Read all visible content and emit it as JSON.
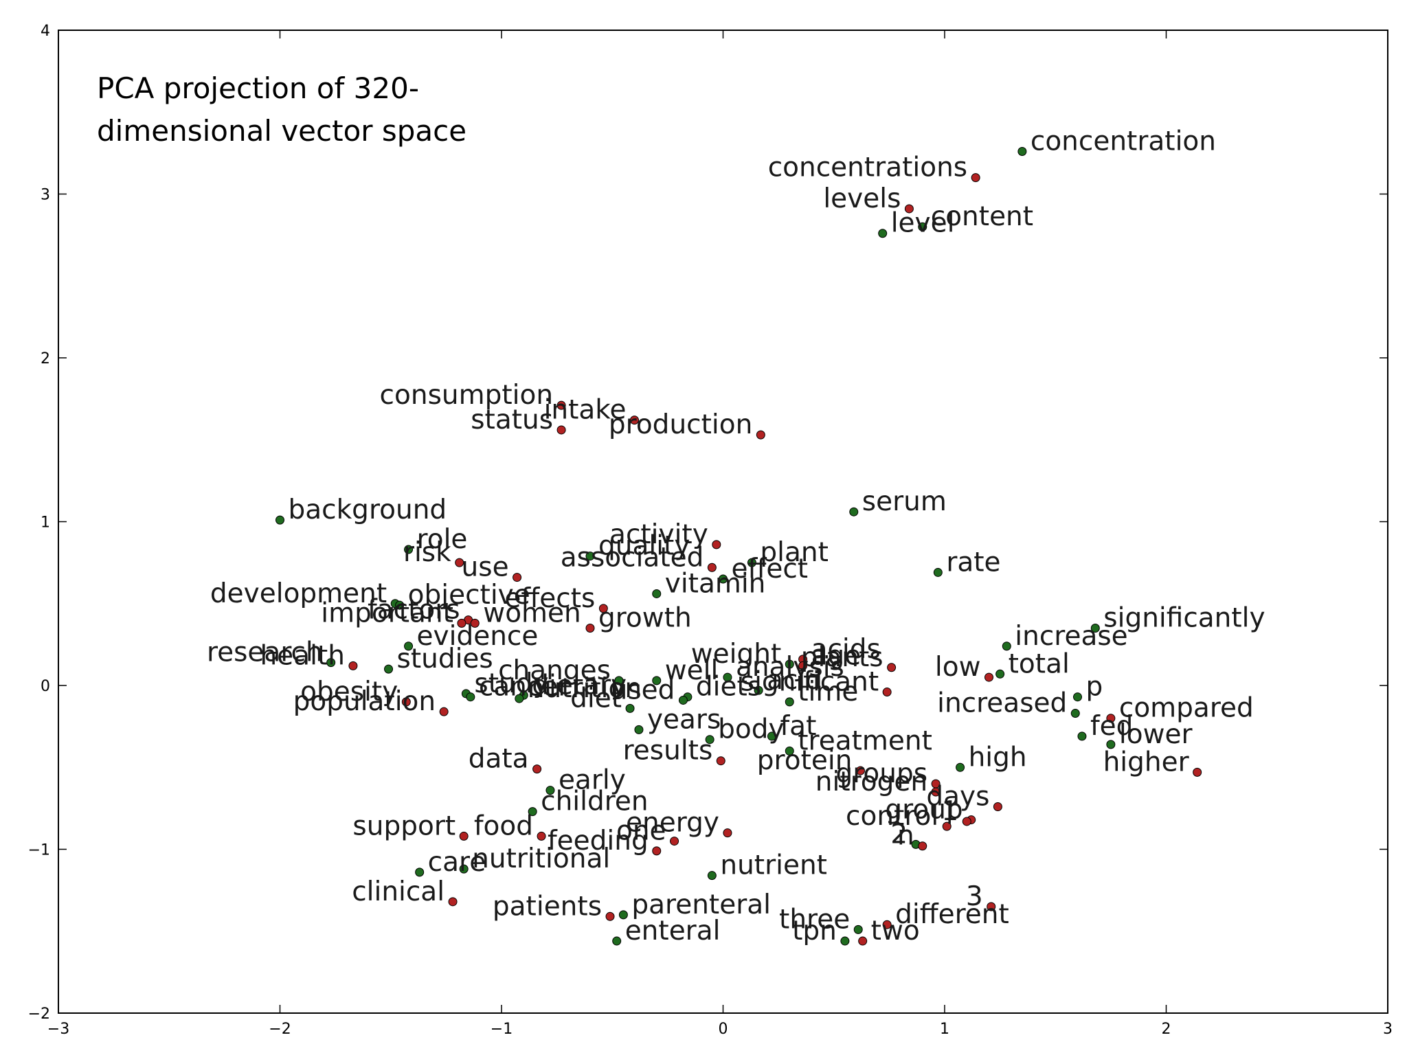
{
  "chart_data": {
    "type": "scatter",
    "title": "",
    "xlabel": "",
    "ylabel": "",
    "annotation": [
      "PCA projection of 320-",
      "dimensional vector space"
    ],
    "xlim": [
      -3,
      3
    ],
    "ylim": [
      -2,
      4
    ],
    "xticks": [
      {
        "value": -3,
        "label": "−3"
      },
      {
        "value": -2,
        "label": "−2"
      },
      {
        "value": -1,
        "label": "−1"
      },
      {
        "value": 0,
        "label": "0"
      },
      {
        "value": 1,
        "label": "1"
      },
      {
        "value": 2,
        "label": "2"
      },
      {
        "value": 3,
        "label": "3"
      }
    ],
    "yticks": [
      {
        "value": -2,
        "label": "−2"
      },
      {
        "value": -1,
        "label": "−1"
      },
      {
        "value": 0,
        "label": "0"
      },
      {
        "value": 1,
        "label": "1"
      },
      {
        "value": 2,
        "label": "2"
      },
      {
        "value": 3,
        "label": "3"
      },
      {
        "value": 4,
        "label": "4"
      }
    ],
    "grid": false,
    "colors": {
      "red": "#b22222",
      "green": "#1f6b1f",
      "edge": "#000000",
      "axes": "#000000"
    },
    "points": [
      {
        "label": "concentration",
        "x": 1.35,
        "y": 3.26,
        "color": "green"
      },
      {
        "label": "concentrations",
        "x": 1.14,
        "y": 3.1,
        "color": "red",
        "anchor": "end"
      },
      {
        "label": "levels",
        "x": 0.84,
        "y": 2.91,
        "color": "red",
        "anchor": "end"
      },
      {
        "label": "content",
        "x": 0.9,
        "y": 2.8,
        "color": "green"
      },
      {
        "label": "level",
        "x": 0.72,
        "y": 2.76,
        "color": "green"
      },
      {
        "label": "consumption",
        "x": -0.73,
        "y": 1.71,
        "color": "red",
        "anchor": "end"
      },
      {
        "label": "intake",
        "x": -0.4,
        "y": 1.62,
        "color": "red",
        "anchor": "end"
      },
      {
        "label": "status",
        "x": -0.73,
        "y": 1.56,
        "color": "red",
        "anchor": "end"
      },
      {
        "label": "production",
        "x": 0.17,
        "y": 1.53,
        "color": "red",
        "anchor": "end"
      },
      {
        "label": "serum",
        "x": 0.59,
        "y": 1.06,
        "color": "green"
      },
      {
        "label": "background",
        "x": -2.0,
        "y": 1.01,
        "color": "green"
      },
      {
        "label": "role",
        "x": -1.42,
        "y": 0.83,
        "color": "green"
      },
      {
        "label": "activity",
        "x": -0.03,
        "y": 0.86,
        "color": "red",
        "anchor": "end"
      },
      {
        "label": "quality",
        "x": -0.6,
        "y": 0.79,
        "color": "green"
      },
      {
        "label": "plant",
        "x": 0.13,
        "y": 0.75,
        "color": "green"
      },
      {
        "label": "risk",
        "x": -1.19,
        "y": 0.75,
        "color": "red",
        "anchor": "end"
      },
      {
        "label": "associated",
        "x": -0.05,
        "y": 0.72,
        "color": "red",
        "anchor": "end"
      },
      {
        "label": "rate",
        "x": 0.97,
        "y": 0.69,
        "color": "green"
      },
      {
        "label": "use",
        "x": -0.93,
        "y": 0.66,
        "color": "red",
        "anchor": "end"
      },
      {
        "label": "effect",
        "x": 0.0,
        "y": 0.65,
        "color": "green"
      },
      {
        "label": "vitamin",
        "x": -0.3,
        "y": 0.56,
        "color": "green"
      },
      {
        "label": "development",
        "x": -1.48,
        "y": 0.5,
        "color": "green",
        "anchor": "end"
      },
      {
        "label": "objective",
        "x": -1.46,
        "y": 0.49,
        "color": "green"
      },
      {
        "label": "effects",
        "x": -0.54,
        "y": 0.47,
        "color": "red",
        "anchor": "end"
      },
      {
        "label": "factors",
        "x": -1.15,
        "y": 0.4,
        "color": "red",
        "anchor": "end"
      },
      {
        "label": "important",
        "x": -1.18,
        "y": 0.38,
        "color": "red",
        "anchor": "end"
      },
      {
        "label": "women",
        "x": -1.12,
        "y": 0.38,
        "color": "red"
      },
      {
        "label": "significantly",
        "x": 1.68,
        "y": 0.35,
        "color": "green"
      },
      {
        "label": "growth",
        "x": -0.6,
        "y": 0.35,
        "color": "red"
      },
      {
        "label": "evidence",
        "x": -1.42,
        "y": 0.24,
        "color": "green"
      },
      {
        "label": "increase",
        "x": 1.28,
        "y": 0.24,
        "color": "green"
      },
      {
        "label": "acids",
        "x": 0.36,
        "y": 0.16,
        "color": "red"
      },
      {
        "label": "research",
        "x": -1.77,
        "y": 0.14,
        "color": "green",
        "anchor": "end"
      },
      {
        "label": "health",
        "x": -1.67,
        "y": 0.12,
        "color": "red",
        "anchor": "end"
      },
      {
        "label": "studies",
        "x": -1.51,
        "y": 0.1,
        "color": "green"
      },
      {
        "label": "weight",
        "x": 0.3,
        "y": 0.13,
        "color": "green",
        "anchor": "end"
      },
      {
        "label": "age",
        "x": 0.36,
        "y": 0.12,
        "color": "red"
      },
      {
        "label": "plants",
        "x": 0.76,
        "y": 0.11,
        "color": "red",
        "anchor": "end"
      },
      {
        "label": "analysis",
        "x": 0.02,
        "y": 0.05,
        "color": "green"
      },
      {
        "label": "changes",
        "x": -0.47,
        "y": 0.03,
        "color": "green",
        "anchor": "end"
      },
      {
        "label": "well",
        "x": -0.3,
        "y": 0.03,
        "color": "green"
      },
      {
        "label": "low",
        "x": 1.2,
        "y": 0.05,
        "color": "red",
        "anchor": "end"
      },
      {
        "label": "total",
        "x": 1.25,
        "y": 0.07,
        "color": "green"
      },
      {
        "label": "significant",
        "x": 0.74,
        "y": -0.04,
        "color": "red",
        "anchor": "end"
      },
      {
        "label": "acid",
        "x": 0.16,
        "y": -0.03,
        "color": "green"
      },
      {
        "label": "p",
        "x": 1.6,
        "y": -0.07,
        "color": "green"
      },
      {
        "label": "study",
        "x": -1.16,
        "y": -0.05,
        "color": "green"
      },
      {
        "label": "dietary",
        "x": -0.9,
        "y": -0.06,
        "color": "green"
      },
      {
        "label": "cancer",
        "x": -1.14,
        "y": -0.07,
        "color": "green"
      },
      {
        "label": "nutrition",
        "x": -0.92,
        "y": -0.08,
        "color": "green"
      },
      {
        "label": "diets",
        "x": -0.16,
        "y": -0.07,
        "color": "green"
      },
      {
        "label": "time",
        "x": 0.3,
        "y": -0.1,
        "color": "green"
      },
      {
        "label": "obesity",
        "x": -1.43,
        "y": -0.1,
        "color": "red",
        "anchor": "end"
      },
      {
        "label": "population",
        "x": -1.26,
        "y": -0.16,
        "color": "red",
        "anchor": "end"
      },
      {
        "label": "diet",
        "x": -0.42,
        "y": -0.14,
        "color": "green",
        "anchor": "end"
      },
      {
        "label": "used",
        "x": -0.18,
        "y": -0.09,
        "color": "green",
        "anchor": "end"
      },
      {
        "label": "increased",
        "x": 1.59,
        "y": -0.17,
        "color": "green",
        "anchor": "end"
      },
      {
        "label": "fed",
        "x": 1.62,
        "y": -0.31,
        "color": "green"
      },
      {
        "label": "years",
        "x": -0.38,
        "y": -0.27,
        "color": "green"
      },
      {
        "label": "body",
        "x": -0.06,
        "y": -0.33,
        "color": "green"
      },
      {
        "label": "fat",
        "x": 0.22,
        "y": -0.31,
        "color": "green"
      },
      {
        "label": "treatment",
        "x": 0.3,
        "y": -0.4,
        "color": "green"
      },
      {
        "label": "compared",
        "x": 1.75,
        "y": -0.2,
        "color": "red"
      },
      {
        "label": "lower",
        "x": 1.75,
        "y": -0.36,
        "color": "green"
      },
      {
        "label": "higher",
        "x": 2.14,
        "y": -0.53,
        "color": "red",
        "anchor": "end"
      },
      {
        "label": "results",
        "x": -0.01,
        "y": -0.46,
        "color": "red",
        "anchor": "end"
      },
      {
        "label": "data",
        "x": -0.84,
        "y": -0.51,
        "color": "red",
        "anchor": "end"
      },
      {
        "label": "protein",
        "x": 0.62,
        "y": -0.52,
        "color": "red",
        "anchor": "end"
      },
      {
        "label": "high",
        "x": 1.07,
        "y": -0.5,
        "color": "green"
      },
      {
        "label": "groups",
        "x": 0.96,
        "y": -0.6,
        "color": "red",
        "anchor": "end"
      },
      {
        "label": "nitrogen",
        "x": 0.96,
        "y": -0.65,
        "color": "red",
        "anchor": "end"
      },
      {
        "label": "early",
        "x": -0.78,
        "y": -0.64,
        "color": "green"
      },
      {
        "label": "group",
        "x": 1.12,
        "y": -0.82,
        "color": "red",
        "anchor": "end"
      },
      {
        "label": "days",
        "x": 1.24,
        "y": -0.74,
        "color": "red",
        "anchor": "end"
      },
      {
        "label": "children",
        "x": -0.86,
        "y": -0.77,
        "color": "green"
      },
      {
        "label": "control",
        "x": 1.01,
        "y": -0.86,
        "color": "red",
        "anchor": "end"
      },
      {
        "label": "1",
        "x": 1.1,
        "y": -0.83,
        "color": "red",
        "anchor": "end"
      },
      {
        "label": "support",
        "x": -1.17,
        "y": -0.92,
        "color": "red",
        "anchor": "end"
      },
      {
        "label": "food",
        "x": -0.82,
        "y": -0.92,
        "color": "red",
        "anchor": "end"
      },
      {
        "label": "energy",
        "x": 0.02,
        "y": -0.9,
        "color": "red",
        "anchor": "end"
      },
      {
        "label": "one",
        "x": -0.22,
        "y": -0.95,
        "color": "red",
        "anchor": "end"
      },
      {
        "label": "feeding",
        "x": -0.3,
        "y": -1.01,
        "color": "red",
        "anchor": "end"
      },
      {
        "label": "2",
        "x": 0.87,
        "y": -0.97,
        "color": "green",
        "anchor": "end"
      },
      {
        "label": "n",
        "x": 0.9,
        "y": -0.98,
        "color": "red",
        "anchor": "end"
      },
      {
        "label": "care",
        "x": -1.37,
        "y": -1.14,
        "color": "green"
      },
      {
        "label": "nutritional",
        "x": -1.17,
        "y": -1.12,
        "color": "green"
      },
      {
        "label": "nutrient",
        "x": -0.05,
        "y": -1.16,
        "color": "green"
      },
      {
        "label": "clinical",
        "x": -1.22,
        "y": -1.32,
        "color": "red",
        "anchor": "end"
      },
      {
        "label": "3",
        "x": 1.21,
        "y": -1.35,
        "color": "red",
        "anchor": "end"
      },
      {
        "label": "patients",
        "x": -0.51,
        "y": -1.41,
        "color": "red",
        "anchor": "end"
      },
      {
        "label": "parenteral",
        "x": -0.45,
        "y": -1.4,
        "color": "green"
      },
      {
        "label": "three",
        "x": 0.61,
        "y": -1.49,
        "color": "green",
        "anchor": "end"
      },
      {
        "label": "different",
        "x": 0.74,
        "y": -1.46,
        "color": "red"
      },
      {
        "label": "enteral",
        "x": -0.48,
        "y": -1.56,
        "color": "green"
      },
      {
        "label": "tpn",
        "x": 0.55,
        "y": -1.56,
        "color": "green",
        "anchor": "end"
      },
      {
        "label": "two",
        "x": 0.63,
        "y": -1.56,
        "color": "red"
      }
    ]
  }
}
